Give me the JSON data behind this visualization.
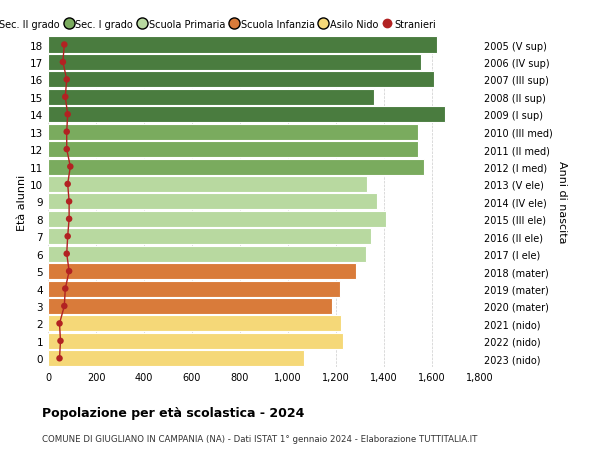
{
  "ages": [
    18,
    17,
    16,
    15,
    14,
    13,
    12,
    11,
    10,
    9,
    8,
    7,
    6,
    5,
    4,
    3,
    2,
    1,
    0
  ],
  "right_labels": [
    "2005 (V sup)",
    "2006 (IV sup)",
    "2007 (III sup)",
    "2008 (II sup)",
    "2009 (I sup)",
    "2010 (III med)",
    "2011 (II med)",
    "2012 (I med)",
    "2013 (V ele)",
    "2014 (IV ele)",
    "2015 (III ele)",
    "2016 (II ele)",
    "2017 (I ele)",
    "2018 (mater)",
    "2019 (mater)",
    "2020 (mater)",
    "2021 (nido)",
    "2022 (nido)",
    "2023 (nido)"
  ],
  "bar_values": [
    1620,
    1555,
    1610,
    1360,
    1655,
    1540,
    1540,
    1565,
    1330,
    1370,
    1410,
    1345,
    1325,
    1285,
    1215,
    1185,
    1220,
    1230,
    1065
  ],
  "stranieri_values": [
    68,
    62,
    78,
    72,
    82,
    78,
    78,
    93,
    82,
    88,
    88,
    82,
    78,
    88,
    72,
    68,
    48,
    52,
    48
  ],
  "bar_colors": [
    "#4a7c3f",
    "#4a7c3f",
    "#4a7c3f",
    "#4a7c3f",
    "#4a7c3f",
    "#7aab5e",
    "#7aab5e",
    "#7aab5e",
    "#b8d9a0",
    "#b8d9a0",
    "#b8d9a0",
    "#b8d9a0",
    "#b8d9a0",
    "#d97b3a",
    "#d97b3a",
    "#d97b3a",
    "#f5d878",
    "#f5d878",
    "#f5d878"
  ],
  "legend_labels": [
    "Sec. II grado",
    "Sec. I grado",
    "Scuola Primaria",
    "Scuola Infanzia",
    "Asilo Nido",
    "Stranieri"
  ],
  "legend_colors": [
    "#4a7c3f",
    "#7aab5e",
    "#b8d9a0",
    "#d97b3a",
    "#f5d878",
    "#b22222"
  ],
  "ylabel_left": "Età alunni",
  "ylabel_right": "Anni di nascita",
  "title": "Popolazione per età scolastica - 2024",
  "subtitle": "COMUNE DI GIUGLIANO IN CAMPANIA (NA) - Dati ISTAT 1° gennaio 2024 - Elaborazione TUTTITALIA.IT",
  "xlim": [
    0,
    1800
  ],
  "xticks": [
    0,
    200,
    400,
    600,
    800,
    1000,
    1200,
    1400,
    1600,
    1800
  ],
  "xtick_labels": [
    "0",
    "200",
    "400",
    "600",
    "800",
    "1,000",
    "1,200",
    "1,400",
    "1,600",
    "1,800"
  ],
  "stranieri_color": "#b22222",
  "bar_height": 0.92,
  "bg_color": "#ffffff",
  "grid_color": "#cccccc"
}
